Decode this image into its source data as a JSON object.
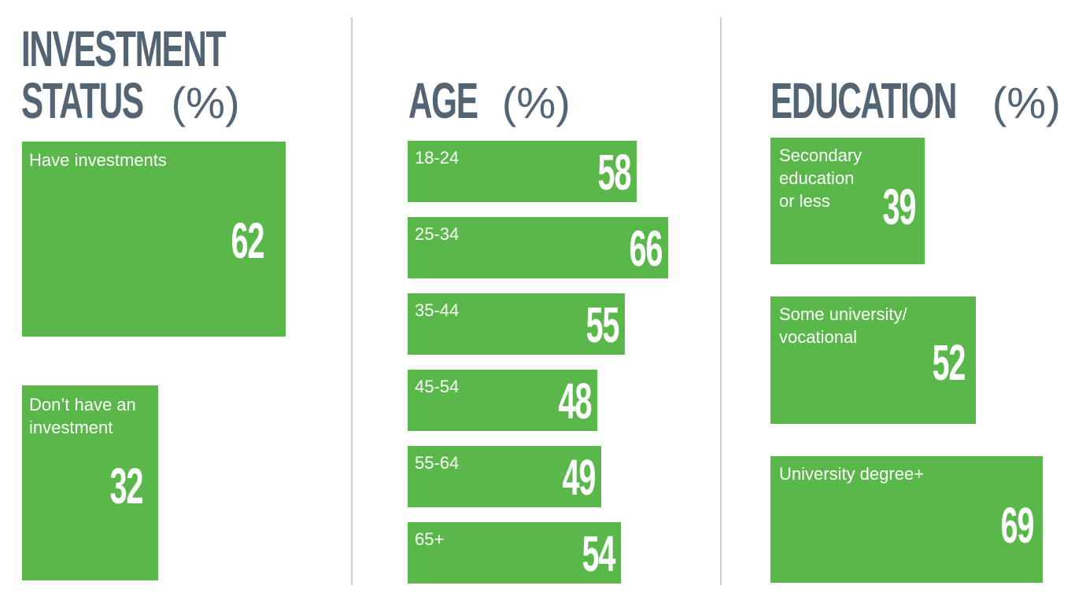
{
  "chart_data": [
    {
      "type": "bar",
      "title_line1": "INVESTMENT",
      "title_line2": "STATUS",
      "unit": "(%)",
      "categories": [
        "Have investments",
        "Don’t have an investment"
      ],
      "labels": [
        "Have investments",
        "Don’t have an\ninvestment"
      ],
      "values": [
        62,
        32
      ],
      "color": "#5ab84a"
    },
    {
      "type": "bar",
      "title": "AGE",
      "unit": "(%)",
      "categories": [
        "18-24",
        "25-34",
        "35-44",
        "45-54",
        "55-64",
        "65+"
      ],
      "values": [
        58,
        66,
        55,
        48,
        49,
        54
      ],
      "color": "#5ab84a"
    },
    {
      "type": "bar",
      "title": "EDUCATION",
      "unit": "(%)",
      "categories": [
        "Secondary education or less",
        "Some university/ vocational",
        "University degree+"
      ],
      "labels": [
        "Secondary\neducation\nor less",
        "Some university/\nvocational",
        "University degree+"
      ],
      "values": [
        39,
        52,
        69
      ],
      "color": "#5ab84a"
    }
  ],
  "colors": {
    "heading": "#536474",
    "bar": "#5ab84a",
    "divider": "#c9d1d6"
  }
}
